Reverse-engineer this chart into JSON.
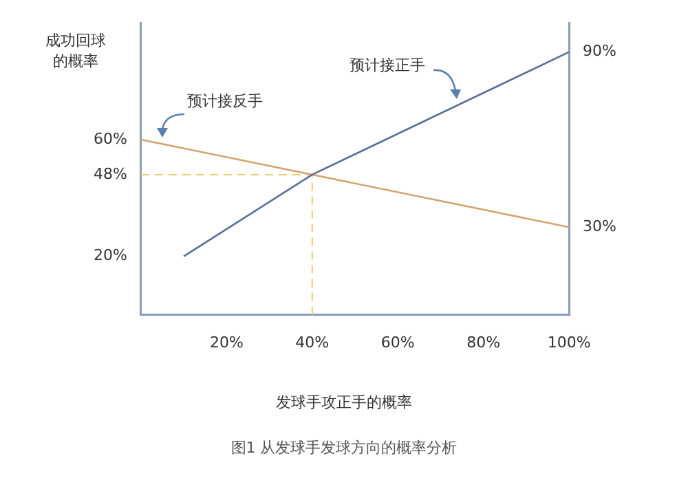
{
  "chart_data": {
    "type": "line",
    "xlabel": "发球手攻正手的概率",
    "ylabel": "成功回球的概率",
    "annotations": [
      "图1 从发球手发球方向的概率分析"
    ],
    "series": [
      {
        "name": "预计接正手",
        "color": "#5b6e99",
        "x": [
          10,
          40,
          100
        ],
        "values": [
          20,
          48,
          90
        ]
      },
      {
        "name": "预计接反手",
        "color": "#d4a46e",
        "x": [
          0,
          100
        ],
        "values": [
          60,
          30
        ]
      }
    ],
    "xlim": [
      0,
      100
    ],
    "xticks": [
      {
        "value": 20,
        "label": "20%"
      },
      {
        "value": 40,
        "label": "40%"
      },
      {
        "value": 60,
        "label": "60%"
      },
      {
        "value": 80,
        "label": "80%"
      },
      {
        "value": 100,
        "label": "100%"
      }
    ],
    "ylim": [
      0,
      100
    ],
    "yticks": [
      {
        "value": 20,
        "label": "20%"
      },
      {
        "value": 48,
        "label": "48%"
      },
      {
        "value": 60,
        "label": "60%"
      }
    ],
    "y2lim": [
      0,
      100
    ],
    "y2ticks": [
      {
        "value": 30,
        "label": "30%"
      },
      {
        "value": 90,
        "label": "90%"
      }
    ],
    "ref_lines": [
      {
        "axis": "y",
        "value": 48,
        "color": "#e6cf72",
        "line_style": "dashed"
      },
      {
        "axis": "x",
        "value": 40,
        "color": "#e6cf72",
        "line_style": "dashed"
      }
    ],
    "grid": false,
    "legend": false,
    "marker": "none",
    "line_style": "solid"
  }
}
